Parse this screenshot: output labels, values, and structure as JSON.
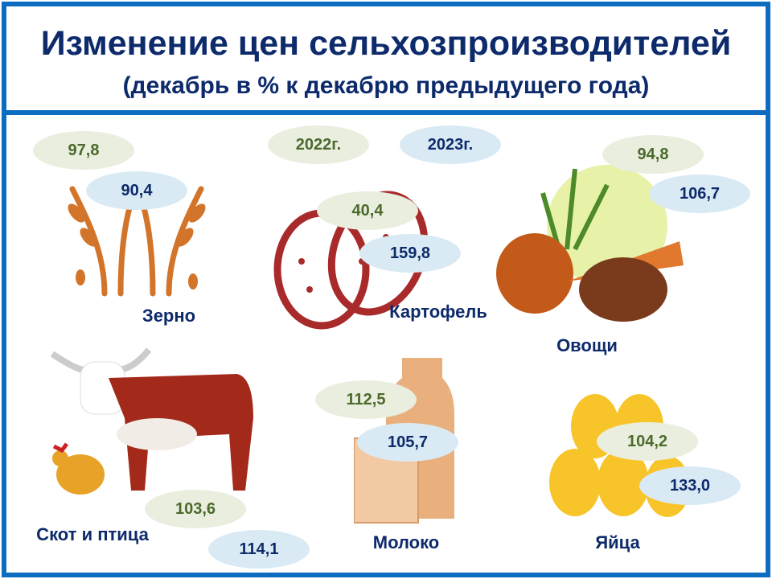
{
  "header": {
    "title": "Изменение цен сельхозпроизводителей",
    "subtitle": "(декабрь в % к декабрю предыдущего года)"
  },
  "legend": {
    "year_2022": "2022г.",
    "year_2023": "2023г."
  },
  "colors": {
    "border": "#0b6cc0",
    "title": "#0d2a6b",
    "year_2022_fill": "#e9eedf",
    "year_2022_text": "#4b6a2b",
    "year_2023_fill": "#d9eaf4",
    "year_2023_text": "#0d2a6b"
  },
  "items": [
    {
      "label": "Зерно",
      "v2022": "97,8",
      "v2023": "90,4",
      "icon": "wheat-icon"
    },
    {
      "label": "Картофель",
      "v2022": "40,4",
      "v2023": "159,8",
      "icon": "potato-icon"
    },
    {
      "label": "Овощи",
      "v2022": "94,8",
      "v2023": "106,7",
      "icon": "vegetables-icon"
    },
    {
      "label": "Скот и птица",
      "v2022": "103,6",
      "v2023": "114,1",
      "icon": "cow-chicken-icon"
    },
    {
      "label": "Молоко",
      "v2022": "112,5",
      "v2023": "105,7",
      "icon": "milk-icon"
    },
    {
      "label": "Яйца",
      "v2022": "104,2",
      "v2023": "133,0",
      "icon": "eggs-icon"
    }
  ]
}
